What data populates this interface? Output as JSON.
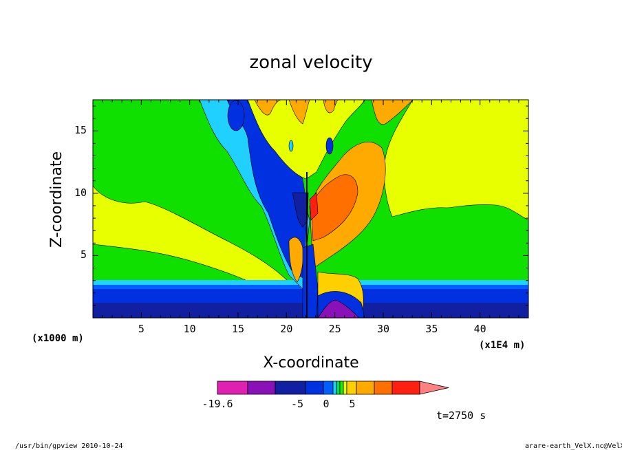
{
  "chart_data": {
    "type": "heatmap",
    "title": "zonal velocity",
    "xlabel": "X-coordinate",
    "ylabel": "Z-coordinate",
    "x_unit_left": "(x1000 m)",
    "x_unit_right": "(x1E4 m)",
    "xlim": [
      0,
      45
    ],
    "ylim": [
      0,
      17.5
    ],
    "xticks": [
      "5",
      "10",
      "15",
      "20",
      "25",
      "30",
      "35",
      "40"
    ],
    "yticks": [
      "5",
      "10",
      "15"
    ],
    "colorbar": {
      "labels": [
        "-19.6",
        "-5",
        "0",
        "5"
      ],
      "colors": [
        "#e020b0",
        "#8a10b8",
        "#1020a0",
        "#0030e0",
        "#0060ff",
        "#20d0ff",
        "#00e060",
        "#20f000",
        "#e0ff00",
        "#ffd000",
        "#ffaa00",
        "#ff7000",
        "#ff2010",
        "#ff8080"
      ]
    },
    "annotation": "t=2750 s"
  },
  "footer": {
    "left": "/usr/bin/gpview   2010-10-24",
    "right": "arare-earth_VelX.nc@VelX"
  },
  "colors": {
    "magenta": "#e020b0",
    "purple": "#8a10b8",
    "navy": "#1020a0",
    "blue": "#0030e0",
    "lightblue": "#0060ff",
    "cyan": "#20d0ff",
    "green": "#10e000",
    "lime": "#30f000",
    "yellow": "#e8ff00",
    "gold": "#ffd000",
    "orange": "#ffaa00",
    "darkorange": "#ff7000",
    "red": "#ff2010",
    "pink": "#ff8080"
  }
}
